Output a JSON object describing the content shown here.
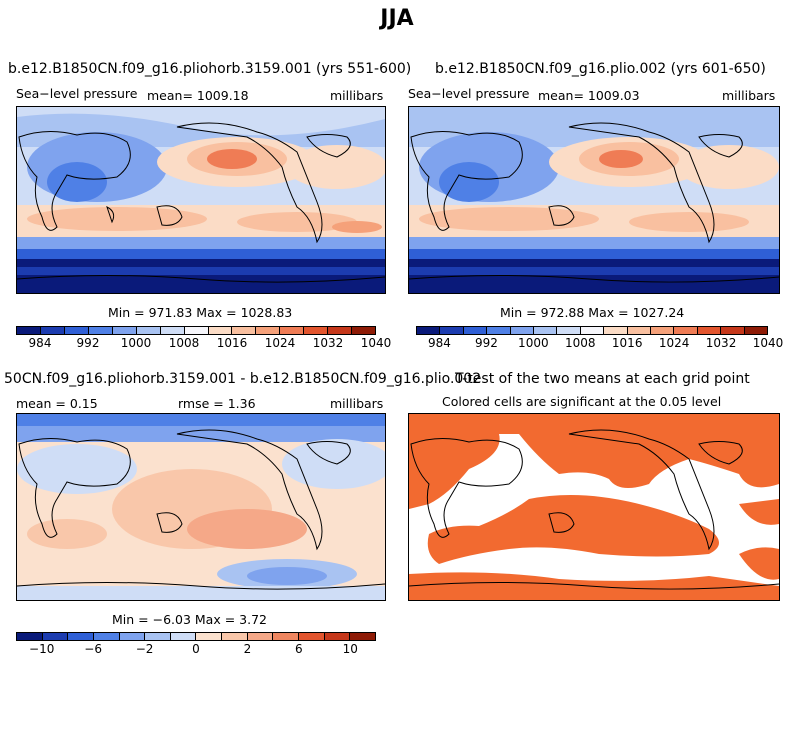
{
  "figure": {
    "title": "JJA"
  },
  "panels": {
    "p1": {
      "title": "b.e12.B1850CN.f09_g16.pliohorb.3159.001 (yrs 551-600)",
      "left_label": "Sea−level pressure",
      "mean_label": "mean= 1009.18",
      "units": "millibars",
      "minmax": "Min = 971.83 Max = 1028.83"
    },
    "p2": {
      "title": "b.e12.B1850CN.f09_g16.plio.002 (yrs 601-650)",
      "left_label": "Sea−level pressure",
      "mean_label": "mean= 1009.03",
      "units": "millibars",
      "minmax": "Min = 972.88 Max = 1027.24"
    },
    "p3": {
      "title": "50CN.f09_g16.pliohorb.3159.001 - b.e12.B1850CN.f09_g16.plio.002",
      "mean_label": "mean =    0.15",
      "rmse_label": "rmse =    1.36",
      "units": "millibars",
      "minmax": "Min =  −6.03 Max =    3.72"
    },
    "p4": {
      "title": "T-test of the two means at each grid point",
      "subtitle": "Colored cells are significant at the 0.05 level"
    }
  },
  "colorbars": {
    "abs": {
      "colors": [
        "#0a1a7a",
        "#1c3cb0",
        "#2f5fd6",
        "#4f80e6",
        "#7fa3ee",
        "#a9c3f2",
        "#cfddf6",
        "#f6f6fb",
        "#fbdcc6",
        "#f9c0a0",
        "#f5a17a",
        "#ef7c55",
        "#e2552e",
        "#c5371a",
        "#8e1b06"
      ],
      "ticks": [
        "984",
        "992",
        "1000",
        "1008",
        "1016",
        "1024",
        "1032",
        "1040"
      ]
    },
    "diff": {
      "colors": [
        "#0a1a7a",
        "#1c3cb0",
        "#2f5fd6",
        "#4f80e6",
        "#7fa3ee",
        "#a9c3f2",
        "#cfddf6",
        "#fbe1ce",
        "#f9c7aa",
        "#f5a888",
        "#ef8660",
        "#e2552e",
        "#c5371a",
        "#8e1b06"
      ],
      "ticks": [
        "−10",
        "−6",
        "−2",
        "0",
        "2",
        "6",
        "10"
      ]
    },
    "ttest_color": "#f26a30"
  }
}
